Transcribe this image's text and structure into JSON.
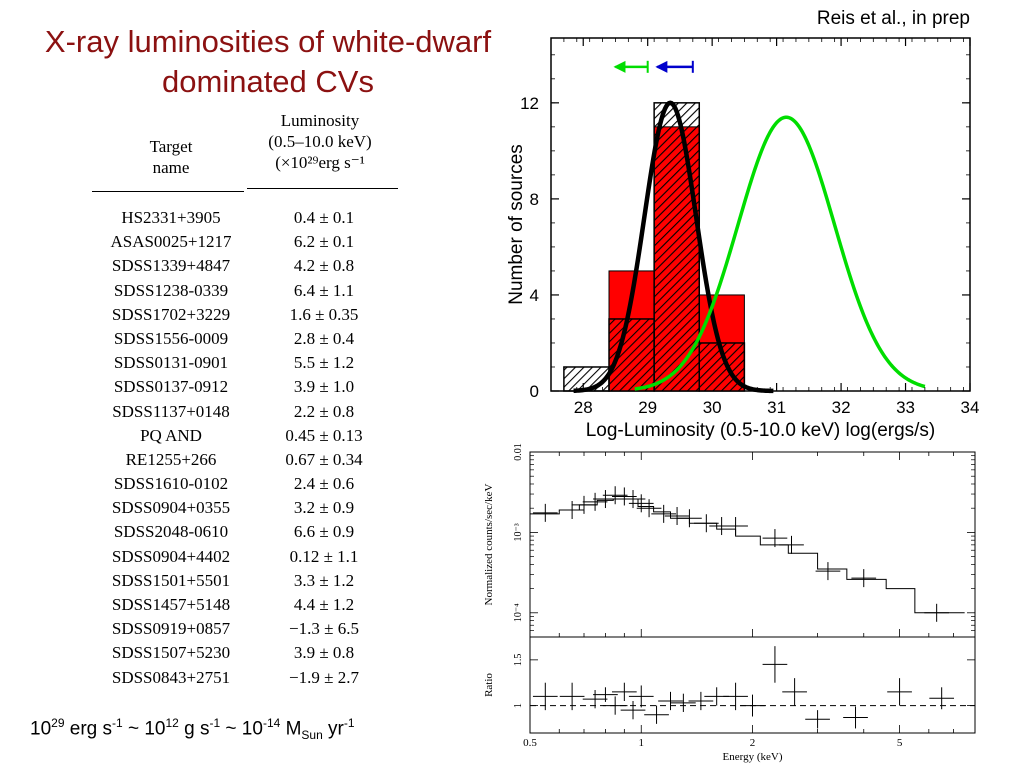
{
  "slide": {
    "title_line1": "X-ray luminosities of white-dwarf",
    "title_line2": "dominated CVs",
    "citation": "Reis et al., in prep"
  },
  "table": {
    "col1_header_lines": [
      "Target",
      "name"
    ],
    "col2_header_lines": [
      "Luminosity",
      "(0.5–10.0 keV)",
      "(×10²⁹erg s⁻¹"
    ],
    "rows": [
      {
        "name": "HS2331+3905",
        "value": "0.4 ± 0.1"
      },
      {
        "name": "ASAS0025+1217",
        "value": "6.2 ± 0.1"
      },
      {
        "name": "SDSS1339+4847",
        "value": "4.2 ± 0.8"
      },
      {
        "name": "SDSS1238-0339",
        "value": "6.4 ± 1.1"
      },
      {
        "name": "SDSS1702+3229",
        "value": "1.6 ± 0.35"
      },
      {
        "name": "SDSS1556-0009",
        "value": "2.8 ± 0.4"
      },
      {
        "name": "SDSS0131-0901",
        "value": "5.5 ± 1.2"
      },
      {
        "name": "SDSS0137-0912",
        "value": "3.9 ± 1.0"
      },
      {
        "name": "SDSS1137+0148",
        "value": "2.2 ± 0.8"
      },
      {
        "name": "PQ AND",
        "value": "0.45 ± 0.13"
      },
      {
        "name": "RE1255+266",
        "value": "0.67 ± 0.34"
      },
      {
        "name": "SDSS1610-0102",
        "value": "2.4 ± 0.6"
      },
      {
        "name": "SDSS0904+0355",
        "value": "3.2 ± 0.9"
      },
      {
        "name": "SDSS2048-0610",
        "value": "6.6 ± 0.9"
      },
      {
        "name": "SDSS0904+4402",
        "value": "0.12 ± 1.1"
      },
      {
        "name": "SDSS1501+5501",
        "value": "3.3 ± 1.2"
      },
      {
        "name": "SDSS1457+5148",
        "value": "4.4 ± 1.2"
      },
      {
        "name": "SDSS0919+0857",
        "value": "−1.3 ± 6.5"
      },
      {
        "name": "SDSS1507+5230",
        "value": "3.9 ± 0.8"
      },
      {
        "name": "SDSS0843+2751",
        "value": "−1.9 ± 2.7"
      }
    ]
  },
  "unit_note": {
    "a": "10",
    "a_exp": "29",
    "b": " erg s",
    "b_exp": "-1",
    "c": " ~ 10",
    "c_exp": "12",
    "d": " g s",
    "d_exp": "-1",
    "e": " ~ 10",
    "e_exp": "-14",
    "f": " M",
    "f_sub": "Sun",
    "g": " yr",
    "g_exp": "-1"
  },
  "chart_data": [
    {
      "type": "bar",
      "xlabel": "Log-Luminosity (0.5-10.0 keV) log(ergs/s)",
      "ylabel": "Number of sources",
      "xlim": [
        27.5,
        34
      ],
      "ylim": [
        0,
        14.7
      ],
      "xticks": [
        "28",
        "29",
        "30",
        "31",
        "32",
        "33",
        "34"
      ],
      "yticks": [
        "0",
        "4",
        "8",
        "12"
      ],
      "bin_edges": [
        27.7,
        28.4,
        29.1,
        29.8,
        30.5
      ],
      "series": [
        {
          "name": "",
          "kind": "solid-red-bars",
          "color": "#ff0000",
          "values": [
            0,
            5,
            11,
            4
          ]
        },
        {
          "name": "",
          "kind": "hatched-bars",
          "values": [
            1,
            3,
            12,
            2
          ]
        },
        {
          "name": "",
          "kind": "gaussian-fit",
          "color": "#000000",
          "peak": 12,
          "center": 29.35,
          "sigma": 0.4
        },
        {
          "name": "",
          "kind": "gaussian-fit",
          "color": "#00dd00",
          "peak": 11.4,
          "center": 31.15,
          "sigma": 0.75
        }
      ],
      "upper_limit_arrows": [
        {
          "color": "#00dd00",
          "x_from": 28.5,
          "x_to": 29.0,
          "y": 13.5
        },
        {
          "color": "#0000cc",
          "x_from": 29.15,
          "x_to": 29.7,
          "y": 13.5
        }
      ]
    },
    {
      "type": "line",
      "subtype": "x-ray-spectrum",
      "ylabel": "Normalized counts/sec/keV",
      "xlabel": "Energy (keV)",
      "xscale": "log",
      "yscale": "log",
      "xlim": [
        0.5,
        8
      ],
      "ylim": [
        5e-05,
        0.01
      ],
      "xticks": [
        "0.5",
        "1",
        "2",
        "5"
      ],
      "yticks": [
        "10⁻⁴",
        "10⁻³",
        "0.01"
      ],
      "data_points": [
        {
          "e": 0.55,
          "y": 0.00175
        },
        {
          "e": 0.65,
          "y": 0.0019
        },
        {
          "e": 0.7,
          "y": 0.0022
        },
        {
          "e": 0.75,
          "y": 0.0024
        },
        {
          "e": 0.8,
          "y": 0.0026
        },
        {
          "e": 0.85,
          "y": 0.0029
        },
        {
          "e": 0.9,
          "y": 0.0028
        },
        {
          "e": 0.95,
          "y": 0.0026
        },
        {
          "e": 1.0,
          "y": 0.0023
        },
        {
          "e": 1.05,
          "y": 0.002
        },
        {
          "e": 1.15,
          "y": 0.0017
        },
        {
          "e": 1.25,
          "y": 0.0016
        },
        {
          "e": 1.35,
          "y": 0.0015
        },
        {
          "e": 1.5,
          "y": 0.0013
        },
        {
          "e": 1.65,
          "y": 0.0012
        },
        {
          "e": 1.8,
          "y": 0.0012
        },
        {
          "e": 2.3,
          "y": 0.00085
        },
        {
          "e": 2.55,
          "y": 0.0007
        },
        {
          "e": 3.2,
          "y": 0.00033
        },
        {
          "e": 4.0,
          "y": 0.00027
        },
        {
          "e": 6.3,
          "y": 0.0001
        }
      ],
      "model_steps": [
        {
          "e0": 0.5,
          "e1": 0.6,
          "y": 0.0017
        },
        {
          "e0": 0.6,
          "e1": 0.68,
          "y": 0.0019
        },
        {
          "e0": 0.68,
          "e1": 0.76,
          "y": 0.0022
        },
        {
          "e0": 0.76,
          "e1": 0.84,
          "y": 0.0025
        },
        {
          "e0": 0.84,
          "e1": 0.98,
          "y": 0.0026
        },
        {
          "e0": 0.98,
          "e1": 1.08,
          "y": 0.0021
        },
        {
          "e0": 1.08,
          "e1": 1.2,
          "y": 0.0018
        },
        {
          "e0": 1.2,
          "e1": 1.35,
          "y": 0.0015
        },
        {
          "e0": 1.35,
          "e1": 1.6,
          "y": 0.0013
        },
        {
          "e0": 1.6,
          "e1": 1.8,
          "y": 0.0011
        },
        {
          "e0": 1.8,
          "e1": 2.1,
          "y": 0.0009
        },
        {
          "e0": 2.1,
          "e1": 2.5,
          "y": 0.0007
        },
        {
          "e0": 2.5,
          "e1": 3.0,
          "y": 0.00055
        },
        {
          "e0": 3.0,
          "e1": 3.6,
          "y": 0.00035
        },
        {
          "e0": 3.6,
          "e1": 4.6,
          "y": 0.00026
        },
        {
          "e0": 4.6,
          "e1": 5.5,
          "y": 0.0002
        },
        {
          "e0": 5.5,
          "e1": 7.5,
          "y": 0.0001
        }
      ]
    },
    {
      "type": "scatter",
      "subtype": "ratio-residuals",
      "ylabel": "Ratio",
      "xlabel": "Energy (keV)",
      "xscale": "log",
      "xlim": [
        0.5,
        8
      ],
      "ylim": [
        0.7,
        1.75
      ],
      "yticks": [
        "1",
        "1.5"
      ],
      "xticks": [
        "0.5",
        "1",
        "2",
        "5"
      ],
      "reference_line": 1.0,
      "points": [
        {
          "e": 0.55,
          "r": 1.1,
          "err": 0.15
        },
        {
          "e": 0.65,
          "r": 1.1,
          "err": 0.15
        },
        {
          "e": 0.75,
          "r": 1.07,
          "err": 0.1
        },
        {
          "e": 0.8,
          "r": 1.12,
          "err": 0.08
        },
        {
          "e": 0.85,
          "r": 1.0,
          "err": 0.1
        },
        {
          "e": 0.9,
          "r": 1.15,
          "err": 0.1
        },
        {
          "e": 0.95,
          "r": 0.95,
          "err": 0.1
        },
        {
          "e": 1.0,
          "r": 1.1,
          "err": 0.12
        },
        {
          "e": 1.1,
          "r": 0.9,
          "err": 0.1
        },
        {
          "e": 1.2,
          "r": 1.05,
          "err": 0.1
        },
        {
          "e": 1.3,
          "r": 1.03,
          "err": 0.1
        },
        {
          "e": 1.45,
          "r": 1.05,
          "err": 0.1
        },
        {
          "e": 1.6,
          "r": 1.1,
          "err": 0.1
        },
        {
          "e": 1.8,
          "r": 1.1,
          "err": 0.15
        },
        {
          "e": 2.0,
          "r": 1.0,
          "err": 0.12
        },
        {
          "e": 2.3,
          "r": 1.45,
          "err": 0.2
        },
        {
          "e": 2.6,
          "r": 1.15,
          "err": 0.15
        },
        {
          "e": 3.0,
          "r": 0.85,
          "err": 0.1
        },
        {
          "e": 3.8,
          "r": 0.87,
          "err": 0.12
        },
        {
          "e": 5.0,
          "r": 1.15,
          "err": 0.15
        },
        {
          "e": 6.5,
          "r": 1.08,
          "err": 0.12
        }
      ]
    }
  ]
}
